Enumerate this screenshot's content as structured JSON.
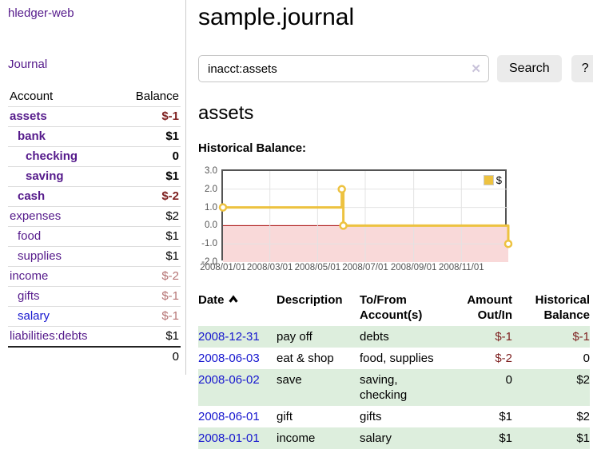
{
  "colors": {
    "purple": "#551a8b",
    "blue": "#1616cf",
    "negative": "#7d1f1f",
    "negative_muted": "#b57373",
    "row_green": "#ddeedd",
    "button_bg": "#ebebeb",
    "divider": "#cccccc",
    "row_border": "#dddddd",
    "text": "#000000",
    "tick_text": "#545454"
  },
  "app": {
    "brand": "hledger-web",
    "nav_journal": "Journal"
  },
  "sidebar": {
    "header": {
      "account": "Account",
      "balance": "Balance"
    },
    "accounts": [
      {
        "name": "assets",
        "indent": 1,
        "bold": true,
        "balance": "$-1",
        "balance_style": "negative"
      },
      {
        "name": "bank",
        "indent": 2,
        "bold": true,
        "balance": "$1",
        "balance_style": "normal"
      },
      {
        "name": "checking",
        "indent": 3,
        "bold": true,
        "balance": "0",
        "balance_style": "normal"
      },
      {
        "name": "saving",
        "indent": 3,
        "bold": true,
        "balance": "$1",
        "balance_style": "normal"
      },
      {
        "name": "cash",
        "indent": 2,
        "bold": true,
        "balance": "$-2",
        "balance_style": "negative"
      },
      {
        "name": "expenses",
        "indent": 1,
        "bold": false,
        "balance": "$2",
        "balance_style": "normal"
      },
      {
        "name": "food",
        "indent": 2,
        "bold": false,
        "balance": "$1",
        "balance_style": "normal"
      },
      {
        "name": "supplies",
        "indent": 2,
        "bold": false,
        "balance": "$1",
        "balance_style": "normal"
      },
      {
        "name": "income",
        "indent": 1,
        "bold": false,
        "balance": "$-2",
        "balance_style": "negative-muted"
      },
      {
        "name": "gifts",
        "indent": 2,
        "bold": false,
        "balance": "$-1",
        "balance_style": "negative-muted"
      },
      {
        "name": "salary",
        "indent": 2,
        "bold": false,
        "link_color": "blue",
        "balance": "$-1",
        "balance_style": "negative-muted"
      },
      {
        "name": "liabilities:debts",
        "indent": 1,
        "bold": false,
        "balance": "$1",
        "balance_style": "normal"
      }
    ],
    "total": "0"
  },
  "header": {
    "title": "sample.journal"
  },
  "search": {
    "value": "inacct:assets",
    "clear_icon": "✕",
    "button_label": "Search",
    "help_label": "?"
  },
  "account_page": {
    "title": "assets"
  },
  "chart_data": {
    "type": "line",
    "step": true,
    "title": "Historical Balance:",
    "legend": {
      "label": "$"
    },
    "ylim": [
      -2,
      3
    ],
    "x_max_day": 365,
    "y_ticks": [
      {
        "label": "3.0",
        "value": 3
      },
      {
        "label": "2.0",
        "value": 2
      },
      {
        "label": "1.0",
        "value": 1
      },
      {
        "label": "0.0",
        "value": 0
      },
      {
        "label": "-1.0",
        "value": -1
      },
      {
        "label": "-2.0",
        "value": -2
      }
    ],
    "x_ticks": [
      {
        "label": "2008/01/01",
        "day": 0
      },
      {
        "label": "2008/03/01",
        "day": 60
      },
      {
        "label": "2008/05/01",
        "day": 121
      },
      {
        "label": "2008/07/01",
        "day": 182
      },
      {
        "label": "2008/09/01",
        "day": 244
      },
      {
        "label": "2008/11/01",
        "day": 305
      }
    ],
    "series": [
      {
        "name": "$",
        "points": [
          {
            "date": "2008-01-01",
            "day": 0,
            "value": 1
          },
          {
            "date": "2008-06-01",
            "day": 152,
            "value": 2
          },
          {
            "date": "2008-06-03",
            "day": 154,
            "value": 0
          },
          {
            "date": "2008-12-31",
            "day": 365,
            "value": -1
          }
        ]
      }
    ],
    "colors": {
      "line": "#edc240",
      "marker_fill": "#ffffff",
      "negative_fill": "#f9d9d9",
      "zero_line": "#a40000",
      "grid": "#e3e3e3",
      "border": "#545454"
    }
  },
  "register": {
    "columns": {
      "date": "Date",
      "description": "Description",
      "accounts": "To/From\nAccount(s)",
      "amount": "Amount\nOut/In",
      "balance": "Historical\nBalance"
    },
    "rows": [
      {
        "date": "2008-12-31",
        "description": "pay off",
        "accounts": "debts",
        "amount": "$-1",
        "amount_neg": true,
        "balance": "$-1",
        "balance_neg": true
      },
      {
        "date": "2008-06-03",
        "description": "eat & shop",
        "accounts": "food, supplies",
        "amount": "$-2",
        "amount_neg": true,
        "balance": "0",
        "balance_neg": false
      },
      {
        "date": "2008-06-02",
        "description": "save",
        "accounts": "saving,\nchecking",
        "amount": "0",
        "amount_neg": false,
        "balance": "$2",
        "balance_neg": false
      },
      {
        "date": "2008-06-01",
        "description": "gift",
        "accounts": "gifts",
        "amount": "$1",
        "amount_neg": false,
        "balance": "$2",
        "balance_neg": false
      },
      {
        "date": "2008-01-01",
        "description": "income",
        "accounts": "salary",
        "amount": "$1",
        "amount_neg": false,
        "balance": "$1",
        "balance_neg": false
      }
    ]
  }
}
